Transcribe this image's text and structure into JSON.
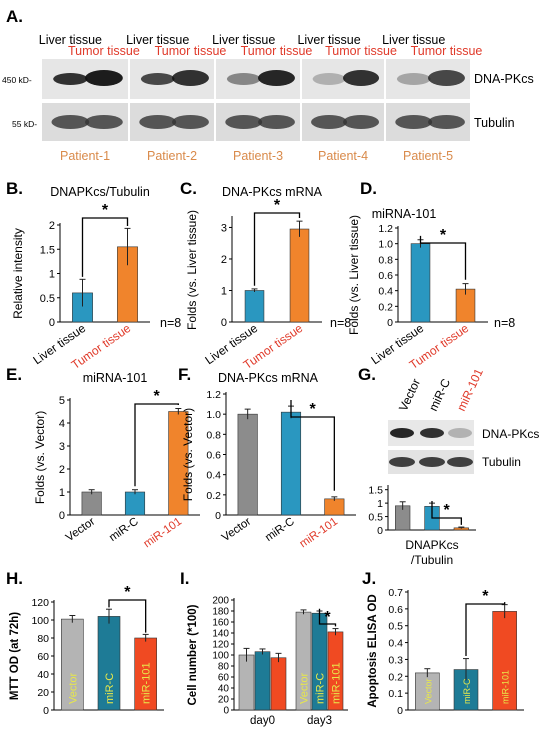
{
  "colors": {
    "liver": "#2a97c0",
    "tumor": "#f0842c",
    "vector": "#8c8c8c",
    "red_label": "#e03a2a",
    "orange_label": "#d98a4a",
    "teal": "#1e7b96",
    "red": "#f04a22",
    "light_gray": "#b4b4b4",
    "yellow_label": "#e8e84a"
  },
  "panelA": {
    "letter": "A.",
    "lane_labels": [
      "Liver tissue",
      "Tumor tissue"
    ],
    "patients": [
      "Patient-1",
      "Patient-2",
      "Patient-3",
      "Patient-4",
      "Patient-5"
    ],
    "markers": [
      "450 kD-",
      "55 kD-"
    ],
    "proteins": [
      "DNA-PKcs",
      "Tubulin"
    ]
  },
  "panelB": {
    "letter": "B.",
    "title": "DNAPKcs/Tubulin",
    "ylabel": "Relative intensity",
    "ticks": [
      "0",
      "0.5",
      "1",
      "1.5",
      "2"
    ],
    "categories": [
      "Liver tissue",
      "Tumor tissue"
    ],
    "n": "n=8",
    "sig": "*"
  },
  "panelC": {
    "letter": "C.",
    "title": "DNA-PKcs mRNA",
    "ylabel": "Folds (vs. Liver tissue)",
    "ticks": [
      "0",
      "1",
      "2",
      "3"
    ],
    "categories": [
      "Liver tissue",
      "Tumor tissue"
    ],
    "n": "n=8",
    "sig": "*"
  },
  "panelD": {
    "letter": "D.",
    "title": "miRNA-101",
    "ylabel": "Folds (vs. Liver tissue)",
    "ticks": [
      "0",
      "0.2",
      "0.4",
      "0.6",
      "0.8",
      "1.0",
      "1.2"
    ],
    "categories": [
      "Liver tissue",
      "Tumor tissue"
    ],
    "n": "n=8",
    "sig": "*"
  },
  "panelE": {
    "letter": "E.",
    "title": "miRNA-101",
    "ylabel": "Folds (vs. Vector)",
    "ticks": [
      "0",
      "1",
      "2",
      "3",
      "4",
      "5"
    ],
    "categories": [
      "Vector",
      "miR-C",
      "miR-101"
    ],
    "sig": "*"
  },
  "panelF": {
    "letter": "F.",
    "title": "DNA-PKcs mRNA",
    "ylabel": "Folds (vs. Vector)",
    "ticks": [
      "0",
      "0.2",
      "0.4",
      "0.6",
      "0.8",
      "1.0",
      "1.2"
    ],
    "categories": [
      "Vector",
      "miR-C",
      "miR-101"
    ],
    "sig": "*"
  },
  "panelG": {
    "letter": "G.",
    "lanes": [
      "Vector",
      "miR-C",
      "miR-101"
    ],
    "proteins": [
      "DNA-PKcs",
      "Tubulin"
    ],
    "ticks": [
      "0",
      "0.5",
      "1",
      "1.5"
    ],
    "xlabel_1": "DNAPKcs",
    "xlabel_2": "/Tubulin",
    "sig": "*"
  },
  "panelH": {
    "letter": "H.",
    "ylabel": "MTT OD (at 72h)",
    "ticks": [
      "0",
      "20",
      "40",
      "60",
      "80",
      "100",
      "120"
    ],
    "categories": [
      "Vector",
      "miR-C",
      "miR-101"
    ],
    "sig": "*"
  },
  "panelI": {
    "letter": "I.",
    "ylabel": "Cell number (*100)",
    "ticks": [
      "0",
      "20",
      "40",
      "60",
      "80",
      "100",
      "120",
      "140",
      "160",
      "180",
      "200"
    ],
    "groups": [
      "day0",
      "day3"
    ],
    "bar_labels": [
      "Vector",
      "miR-C",
      "miR-101"
    ],
    "sig": "*"
  },
  "panelJ": {
    "letter": "J.",
    "ylabel": "Apoptosis ELISA OD",
    "ticks": [
      "0",
      "0.1",
      "0.2",
      "0.3",
      "0.4",
      "0.5",
      "0.6",
      "0.7"
    ],
    "categories": [
      "Vector",
      "miR-C",
      "miR-101"
    ],
    "sig": "*"
  },
  "chart_data": [
    {
      "type": "bar",
      "panel": "B",
      "categories": [
        "Liver tissue",
        "Tumor tissue"
      ],
      "values": [
        0.6,
        1.55
      ],
      "errors": [
        0.28,
        0.38
      ],
      "ylim": [
        0,
        2
      ],
      "title": "DNAPKcs/Tubulin",
      "ylabel": "Relative intensity"
    },
    {
      "type": "bar",
      "panel": "C",
      "categories": [
        "Liver tissue",
        "Tumor tissue"
      ],
      "values": [
        1.0,
        2.95
      ],
      "errors": [
        0.05,
        0.25
      ],
      "ylim": [
        0,
        3.3
      ],
      "title": "DNA-PKcs mRNA",
      "ylabel": "Folds (vs. Liver tissue)"
    },
    {
      "type": "bar",
      "panel": "D",
      "categories": [
        "Liver tissue",
        "Tumor tissue"
      ],
      "values": [
        1.0,
        0.42
      ],
      "errors": [
        0.05,
        0.07
      ],
      "ylim": [
        0,
        1.2
      ],
      "title": "miRNA-101",
      "ylabel": "Folds (vs. Liver tissue)"
    },
    {
      "type": "bar",
      "panel": "E",
      "categories": [
        "Vector",
        "miR-C",
        "miR-101"
      ],
      "values": [
        1.0,
        1.0,
        4.5
      ],
      "errors": [
        0.1,
        0.1,
        0.13
      ],
      "ylim": [
        0,
        5
      ],
      "title": "miRNA-101",
      "ylabel": "Folds (vs. Vector)"
    },
    {
      "type": "bar",
      "panel": "F",
      "categories": [
        "Vector",
        "miR-C",
        "miR-101"
      ],
      "values": [
        1.0,
        1.02,
        0.16
      ],
      "errors": [
        0.05,
        0.06,
        0.02
      ],
      "ylim": [
        0,
        1.2
      ],
      "title": "DNA-PKcs mRNA",
      "ylabel": "Folds (vs. Vector)"
    },
    {
      "type": "bar",
      "panel": "G",
      "categories": [
        "Vector",
        "miR-C",
        "miR-101"
      ],
      "values": [
        0.9,
        0.88,
        0.08
      ],
      "errors": [
        0.15,
        0.12,
        0.03
      ],
      "ylim": [
        0,
        1.6
      ],
      "xlabel": "DNAPKcs /Tubulin"
    },
    {
      "type": "bar",
      "panel": "H",
      "categories": [
        "Vector",
        "miR-C",
        "miR-101"
      ],
      "values": [
        101,
        104,
        80
      ],
      "errors": [
        4,
        8,
        4
      ],
      "ylim": [
        0,
        120
      ],
      "ylabel": "MTT OD (at 72h)"
    },
    {
      "type": "bar",
      "panel": "I",
      "categories": [
        "day0",
        "day3"
      ],
      "series": [
        {
          "name": "Vector",
          "values": [
            100,
            178
          ]
        },
        {
          "name": "miR-C",
          "values": [
            106,
            176
          ]
        },
        {
          "name": "miR-101",
          "values": [
            95,
            142
          ]
        }
      ],
      "errors": [
        [
          12,
          4
        ],
        [
          5,
          4
        ],
        [
          8,
          6
        ]
      ],
      "ylim": [
        0,
        200
      ],
      "ylabel": "Cell number (*100)"
    },
    {
      "type": "bar",
      "panel": "J",
      "categories": [
        "Vector",
        "miR-C",
        "miR-101"
      ],
      "values": [
        0.22,
        0.24,
        0.585
      ],
      "errors": [
        0.025,
        0.065,
        0.04
      ],
      "ylim": [
        0,
        0.7
      ],
      "ylabel": "Apoptosis ELISA OD"
    }
  ]
}
